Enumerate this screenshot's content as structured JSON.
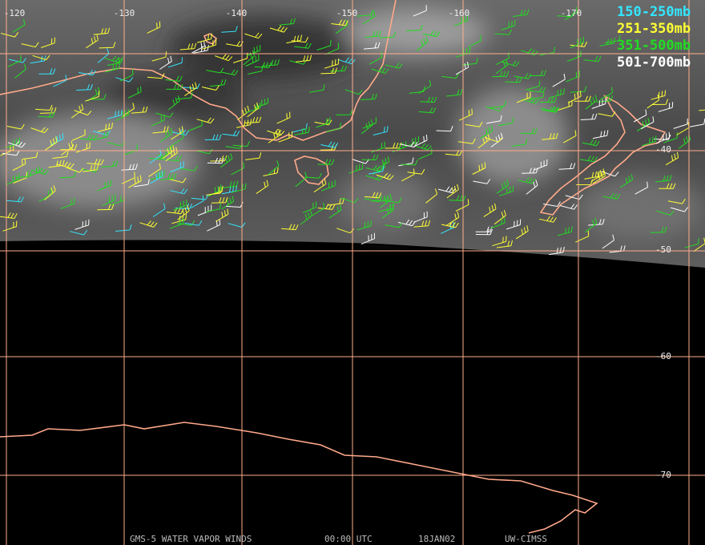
{
  "map": {
    "longitudes": [
      "-120",
      "-130",
      "-140",
      "-150",
      "-160",
      "-170"
    ],
    "latitudes": [
      "-40",
      "-50",
      "-60",
      "-70"
    ],
    "legend": [
      {
        "label": "150-250mb",
        "color": "#33e6ff"
      },
      {
        "label": "251-350mb",
        "color": "#ffff33"
      },
      {
        "label": "351-500mb",
        "color": "#22dd22"
      },
      {
        "label": "501-700mb",
        "color": "#ffffff"
      }
    ],
    "footer": [
      "GMS-5 WATER VAPOR WINDS",
      "00:00 UTC",
      "18JAN02",
      "UW-CIMSS"
    ]
  }
}
